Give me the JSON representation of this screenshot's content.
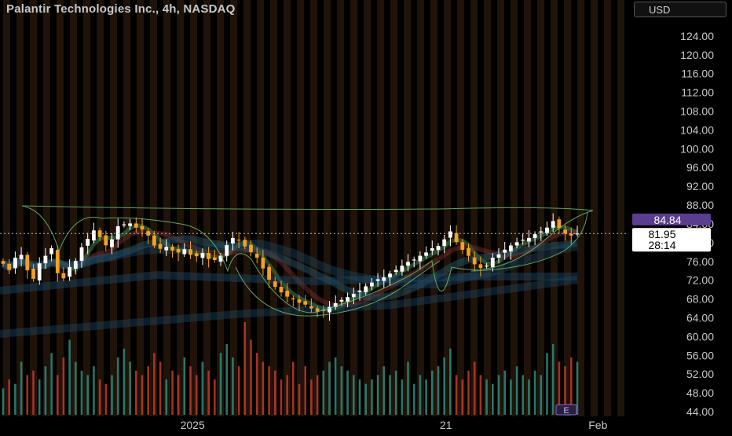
{
  "header": {
    "title": "Palantir Technologies Inc., 4h, NASDAQ",
    "currency": "USD"
  },
  "chart_data": {
    "type": "candlestick",
    "ylim": [
      43,
      128
    ],
    "y_ticks": [
      "124.00",
      "120.00",
      "116.00",
      "112.00",
      "108.00",
      "104.00",
      "100.00",
      "96.00",
      "92.00",
      "88.00",
      "84.00",
      "80.00",
      "76.00",
      "72.00",
      "68.00",
      "64.00",
      "60.00",
      "56.00",
      "52.00",
      "48.00",
      "44.00"
    ],
    "x_ticks": [
      {
        "label": "2025",
        "x": 38
      },
      {
        "label": "21",
        "x": 88
      },
      {
        "label": "Feb",
        "x": 118
      }
    ],
    "x_range": [
      0,
      124
    ],
    "price_labels": {
      "high_marker": {
        "value": 84.84,
        "label": "84.84",
        "color": "#5b3d8f"
      },
      "last": {
        "value": 81.95,
        "label": "81.95",
        "countdown": "28:14"
      }
    },
    "annotation": {
      "label": "E",
      "kind": "earnings"
    },
    "colors": {
      "up": "#ffffff",
      "down": "#f5a020",
      "vol_up": "#2e8b7a",
      "vol_down": "#c0392b",
      "bg_stripe": "#3a2210"
    },
    "close_series": [
      75.5,
      74.2,
      76.8,
      77.4,
      74.1,
      72.3,
      75.6,
      77.2,
      78.8,
      73.5,
      72.4,
      74.8,
      76.1,
      79.0,
      80.8,
      82.6,
      81.2,
      79.4,
      80.7,
      83.5,
      83.9,
      84.1,
      83.2,
      82.8,
      81.5,
      79.4,
      78.7,
      79.1,
      78.3,
      77.9,
      78.6,
      77.4,
      77.1,
      77.8,
      76.5,
      76.3,
      77.2,
      79.5,
      81.0,
      80.6,
      79.2,
      78.0,
      76.8,
      74.5,
      72.1,
      70.6,
      69.4,
      68.5,
      67.9,
      67.2,
      66.8,
      66.0,
      65.3,
      65.5,
      66.3,
      67.1,
      67.8,
      68.4,
      69.1,
      69.8,
      70.7,
      71.5,
      72.2,
      72.6,
      73.4,
      74.2,
      75.1,
      75.9,
      76.4,
      77.2,
      77.9,
      78.8,
      79.3,
      80.7,
      82.4,
      80.1,
      78.5,
      77.2,
      75.4,
      74.6,
      75.1,
      76.8,
      77.5,
      78.5,
      79.4,
      80.1,
      80.6,
      81.0,
      81.8,
      82.4,
      83.2,
      84.6,
      83.1,
      81.9,
      81.5,
      81.95
    ],
    "volume_series": [
      6,
      8,
      7,
      12,
      9,
      10,
      8,
      11,
      14,
      9,
      13,
      17,
      12,
      10,
      9,
      11,
      8,
      7,
      9,
      13,
      15,
      12,
      10,
      9,
      11,
      14,
      12,
      8,
      10,
      9,
      13,
      11,
      9,
      12,
      10,
      8,
      14,
      16,
      13,
      11,
      21,
      17,
      14,
      12,
      11,
      10,
      8,
      9,
      12,
      7,
      11,
      8,
      9,
      10,
      12,
      13,
      11,
      10,
      9,
      8,
      7,
      8,
      9,
      11,
      9,
      10,
      8,
      12,
      7,
      9,
      8,
      10,
      11,
      13,
      15,
      9,
      8,
      10,
      12,
      9,
      8,
      7,
      9,
      10,
      8,
      11,
      9,
      8,
      10,
      9,
      14,
      16,
      12,
      11,
      13,
      12
    ]
  }
}
